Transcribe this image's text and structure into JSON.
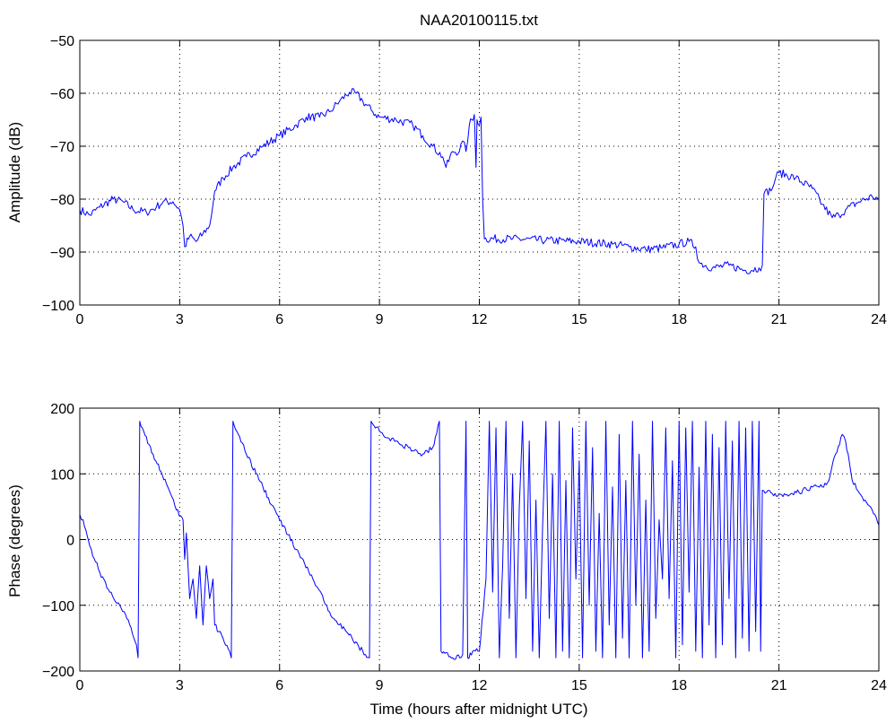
{
  "window": {
    "title": "NAA20100115.txt"
  },
  "colors": {
    "series": "#0000ff",
    "axes": "#000000",
    "grid": "#000000",
    "background": "#ffffff"
  },
  "chart_data": [
    {
      "type": "line",
      "title": "NAA20100115.txt",
      "xlabel": "",
      "ylabel": "Amplitude (dB)",
      "xlim": [
        0,
        24
      ],
      "ylim": [
        -100,
        -50
      ],
      "xticks": [
        "0",
        "3",
        "6",
        "9",
        "12",
        "15",
        "18",
        "21",
        "24"
      ],
      "yticks": [
        "-100",
        "-90",
        "-80",
        "-70",
        "-60",
        "-50"
      ],
      "grid": true,
      "series": [
        {
          "points": [
            [
              0.0,
              -82
            ],
            [
              0.3,
              -83
            ],
            [
              0.6,
              -81.5
            ],
            [
              1.0,
              -80
            ],
            [
              1.3,
              -80.5
            ],
            [
              1.6,
              -82
            ],
            [
              2.0,
              -82.5
            ],
            [
              2.3,
              -81.5
            ],
            [
              2.5,
              -80.5
            ],
            [
              2.8,
              -80.5
            ],
            [
              3.0,
              -82
            ],
            [
              3.1,
              -85
            ],
            [
              3.15,
              -89
            ],
            [
              3.3,
              -87
            ],
            [
              3.5,
              -88
            ],
            [
              3.7,
              -86.5
            ],
            [
              3.9,
              -85
            ],
            [
              4.0,
              -81
            ],
            [
              4.05,
              -78.5
            ],
            [
              4.3,
              -76
            ],
            [
              4.6,
              -74
            ],
            [
              5.0,
              -72
            ],
            [
              5.5,
              -70
            ],
            [
              6.0,
              -68
            ],
            [
              6.5,
              -66
            ],
            [
              6.8,
              -64.5
            ],
            [
              7.2,
              -64.5
            ],
            [
              7.5,
              -63.5
            ],
            [
              7.8,
              -61.5
            ],
            [
              8.1,
              -59.8
            ],
            [
              8.3,
              -60
            ],
            [
              8.5,
              -61.5
            ],
            [
              8.8,
              -63.5
            ],
            [
              9.0,
              -64.5
            ],
            [
              9.5,
              -65
            ],
            [
              10.0,
              -66
            ],
            [
              10.3,
              -68
            ],
            [
              10.6,
              -70
            ],
            [
              10.9,
              -72
            ],
            [
              11.0,
              -74
            ],
            [
              11.2,
              -71
            ],
            [
              11.4,
              -71
            ],
            [
              11.5,
              -69
            ],
            [
              11.6,
              -71
            ],
            [
              11.7,
              -66
            ],
            [
              11.85,
              -64
            ],
            [
              11.9,
              -74
            ],
            [
              11.93,
              -65
            ],
            [
              12.0,
              -66
            ],
            [
              12.05,
              -64.5
            ],
            [
              12.1,
              -80
            ],
            [
              12.15,
              -87.5
            ],
            [
              13.0,
              -87.5
            ],
            [
              14.0,
              -87.8
            ],
            [
              15.0,
              -88
            ],
            [
              16.0,
              -88.5
            ],
            [
              16.5,
              -89
            ],
            [
              17.0,
              -89.5
            ],
            [
              17.5,
              -89.2
            ],
            [
              18.0,
              -88.5
            ],
            [
              18.3,
              -88
            ],
            [
              18.5,
              -89
            ],
            [
              18.6,
              -92
            ],
            [
              19.0,
              -93
            ],
            [
              19.5,
              -92.5
            ],
            [
              20.0,
              -93.5
            ],
            [
              20.4,
              -93
            ],
            [
              20.5,
              -92.5
            ],
            [
              20.55,
              -79
            ],
            [
              20.8,
              -78
            ],
            [
              20.9,
              -76
            ],
            [
              21.0,
              -75
            ],
            [
              21.5,
              -76
            ],
            [
              22.0,
              -78
            ],
            [
              22.3,
              -81
            ],
            [
              22.6,
              -83.5
            ],
            [
              22.8,
              -83
            ],
            [
              23.0,
              -82
            ],
            [
              23.4,
              -80.5
            ],
            [
              23.8,
              -79.5
            ],
            [
              24.0,
              -80
            ]
          ]
        }
      ]
    },
    {
      "type": "line",
      "title": "",
      "xlabel": "Time (hours after midnight UTC)",
      "ylabel": "Phase (degrees)",
      "xlim": [
        0,
        24
      ],
      "ylim": [
        -200,
        200
      ],
      "xticks": [
        "0",
        "3",
        "6",
        "9",
        "12",
        "15",
        "18",
        "21",
        "24"
      ],
      "yticks": [
        "-200",
        "-100",
        "0",
        "100",
        "200"
      ],
      "grid": true,
      "series": [
        {
          "points": [
            [
              0.0,
              38
            ],
            [
              0.1,
              30
            ],
            [
              0.3,
              -10
            ],
            [
              0.6,
              -50
            ],
            [
              0.9,
              -80
            ],
            [
              1.2,
              -100
            ],
            [
              1.5,
              -130
            ],
            [
              1.7,
              -160
            ],
            [
              1.75,
              -180
            ],
            [
              1.8,
              180
            ],
            [
              2.2,
              130
            ],
            [
              2.6,
              85
            ],
            [
              2.9,
              45
            ],
            [
              3.1,
              30
            ],
            [
              3.15,
              -30
            ],
            [
              3.2,
              10
            ],
            [
              3.3,
              -90
            ],
            [
              3.4,
              -60
            ],
            [
              3.5,
              -120
            ],
            [
              3.6,
              -40
            ],
            [
              3.7,
              -130
            ],
            [
              3.8,
              -40
            ],
            [
              3.9,
              -90
            ],
            [
              4.0,
              -60
            ],
            [
              4.05,
              -130
            ],
            [
              4.3,
              -150
            ],
            [
              4.5,
              -170
            ],
            [
              4.55,
              -180
            ],
            [
              4.6,
              180
            ],
            [
              5.0,
              130
            ],
            [
              5.5,
              80
            ],
            [
              6.0,
              30
            ],
            [
              6.5,
              -15
            ],
            [
              7.0,
              -60
            ],
            [
              7.5,
              -110
            ],
            [
              8.0,
              -140
            ],
            [
              8.5,
              -170
            ],
            [
              8.7,
              -180
            ],
            [
              8.75,
              180
            ],
            [
              9.0,
              165
            ],
            [
              9.2,
              155
            ],
            [
              9.5,
              150
            ],
            [
              10.0,
              135
            ],
            [
              10.3,
              130
            ],
            [
              10.6,
              140
            ],
            [
              10.8,
              180
            ],
            [
              10.85,
              -170
            ],
            [
              11.2,
              -180
            ],
            [
              11.5,
              -175
            ],
            [
              11.6,
              180
            ],
            [
              11.65,
              -180
            ],
            [
              11.8,
              -170
            ],
            [
              12.0,
              -170
            ],
            [
              12.2,
              -60
            ],
            [
              12.3,
              180
            ],
            [
              12.4,
              -80
            ],
            [
              12.5,
              170
            ],
            [
              12.6,
              -180
            ],
            [
              12.7,
              -40
            ],
            [
              12.8,
              180
            ],
            [
              12.9,
              -120
            ],
            [
              13.0,
              100
            ],
            [
              13.1,
              -180
            ],
            [
              13.2,
              50
            ],
            [
              13.3,
              180
            ],
            [
              13.4,
              -90
            ],
            [
              13.5,
              150
            ],
            [
              13.6,
              -170
            ],
            [
              13.7,
              60
            ],
            [
              13.8,
              -180
            ],
            [
              13.9,
              20
            ],
            [
              14.0,
              180
            ],
            [
              14.1,
              -120
            ],
            [
              14.2,
              100
            ],
            [
              14.3,
              -180
            ],
            [
              14.4,
              180
            ],
            [
              14.5,
              -170
            ],
            [
              14.6,
              90
            ],
            [
              14.7,
              -180
            ],
            [
              14.8,
              170
            ],
            [
              14.9,
              -60
            ],
            [
              15.0,
              120
            ],
            [
              15.1,
              -180
            ],
            [
              15.2,
              180
            ],
            [
              15.3,
              -100
            ],
            [
              15.4,
              140
            ],
            [
              15.5,
              -170
            ],
            [
              15.6,
              40
            ],
            [
              15.7,
              -180
            ],
            [
              15.8,
              180
            ],
            [
              15.9,
              -130
            ],
            [
              16.0,
              80
            ],
            [
              16.1,
              -180
            ],
            [
              16.2,
              160
            ],
            [
              16.3,
              -150
            ],
            [
              16.4,
              90
            ],
            [
              16.5,
              -180
            ],
            [
              16.6,
              180
            ],
            [
              16.7,
              -100
            ],
            [
              16.8,
              130
            ],
            [
              16.9,
              -180
            ],
            [
              17.0,
              60
            ],
            [
              17.1,
              -170
            ],
            [
              17.2,
              180
            ],
            [
              17.3,
              -120
            ],
            [
              17.4,
              30
            ],
            [
              17.5,
              -60
            ],
            [
              17.6,
              170
            ],
            [
              17.7,
              -90
            ],
            [
              17.8,
              120
            ],
            [
              17.9,
              -180
            ],
            [
              18.0,
              180
            ],
            [
              18.1,
              -160
            ],
            [
              18.2,
              170
            ],
            [
              18.3,
              -80
            ],
            [
              18.4,
              180
            ],
            [
              18.5,
              -170
            ],
            [
              18.6,
              110
            ],
            [
              18.7,
              -180
            ],
            [
              18.8,
              180
            ],
            [
              18.9,
              -130
            ],
            [
              19.0,
              160
            ],
            [
              19.1,
              -180
            ],
            [
              19.2,
              140
            ],
            [
              19.3,
              -160
            ],
            [
              19.4,
              180
            ],
            [
              19.5,
              -90
            ],
            [
              19.6,
              150
            ],
            [
              19.7,
              -180
            ],
            [
              19.8,
              180
            ],
            [
              19.9,
              -150
            ],
            [
              20.0,
              170
            ],
            [
              20.1,
              -170
            ],
            [
              20.2,
              180
            ],
            [
              20.3,
              -140
            ],
            [
              20.4,
              180
            ],
            [
              20.45,
              -170
            ],
            [
              20.5,
              75
            ],
            [
              20.8,
              70
            ],
            [
              21.2,
              68
            ],
            [
              21.6,
              72
            ],
            [
              22.0,
              80
            ],
            [
              22.3,
              80
            ],
            [
              22.5,
              90
            ],
            [
              22.7,
              130
            ],
            [
              22.9,
              160
            ],
            [
              23.0,
              150
            ],
            [
              23.2,
              90
            ],
            [
              23.5,
              65
            ],
            [
              23.8,
              45
            ],
            [
              24.0,
              22
            ]
          ]
        }
      ]
    }
  ]
}
